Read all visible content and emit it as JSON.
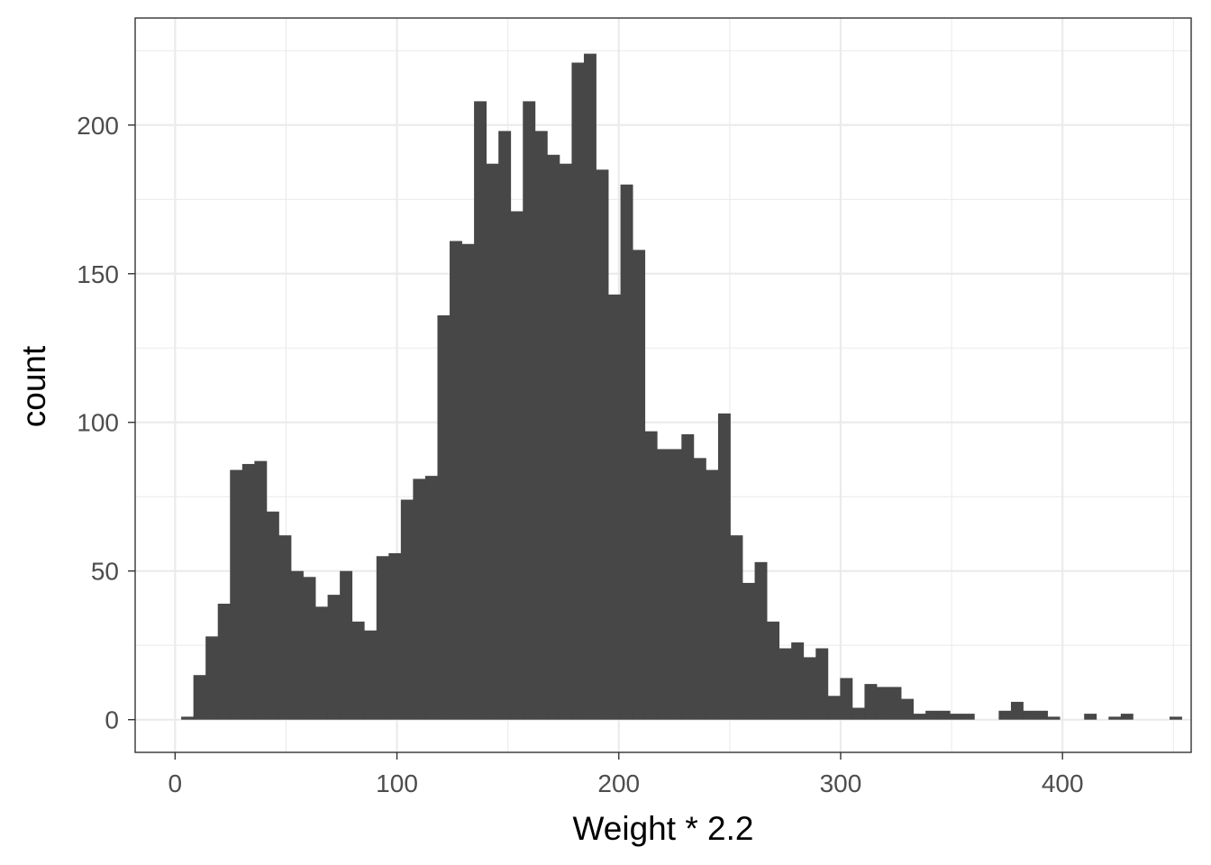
{
  "chart_data": {
    "type": "bar",
    "subtype": "histogram",
    "xlabel": "Weight * 2.2",
    "ylabel": "count",
    "xlim": [
      -18,
      458
    ],
    "ylim": [
      -11,
      236
    ],
    "x_major_ticks": [
      0,
      100,
      200,
      300,
      400
    ],
    "x_tick_labels": [
      "0",
      "100",
      "200",
      "300",
      "400"
    ],
    "x_minor_ticks": [
      50,
      150,
      250,
      350,
      450
    ],
    "y_major_ticks": [
      0,
      50,
      100,
      150,
      200
    ],
    "y_tick_labels": [
      "0",
      "50",
      "100",
      "150",
      "200"
    ],
    "y_minor_ticks": [
      25,
      75,
      125,
      175,
      225
    ],
    "grid": true,
    "bin_width": 5.5,
    "bin_start": 2.75,
    "values": [
      1,
      15,
      28,
      39,
      84,
      86,
      87,
      70,
      62,
      50,
      48,
      38,
      42,
      50,
      33,
      30,
      55,
      56,
      74,
      81,
      82,
      136,
      161,
      160,
      208,
      187,
      198,
      171,
      208,
      198,
      190,
      187,
      221,
      224,
      185,
      143,
      180,
      158,
      97,
      91,
      91,
      96,
      88,
      84,
      103,
      62,
      46,
      53,
      33,
      24,
      26,
      21,
      24,
      8,
      14,
      4,
      12,
      11,
      11,
      7,
      2,
      3,
      3,
      2,
      2,
      0,
      0,
      3,
      6,
      3,
      3,
      1,
      0,
      0,
      2,
      0,
      1,
      2,
      0,
      0,
      0,
      1
    ],
    "bar_color": "#474747",
    "panel_border_color": "#333333",
    "grid_color": "#ebebeb"
  }
}
